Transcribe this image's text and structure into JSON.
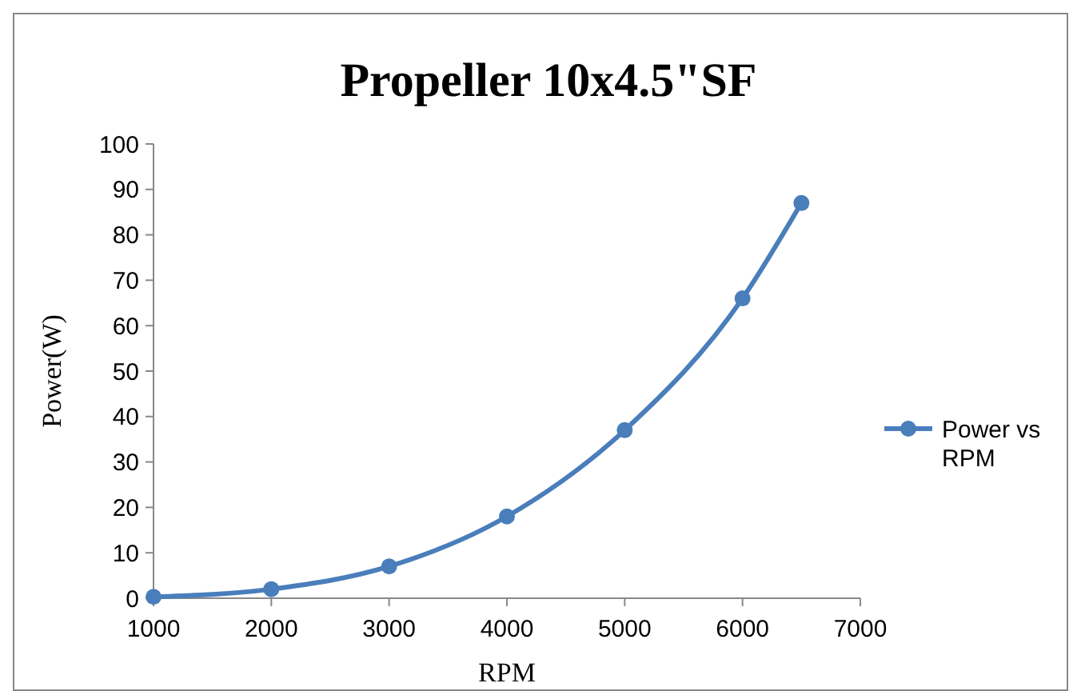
{
  "chart_data": {
    "type": "line",
    "title": "Propeller 10x4.5\"SF",
    "xlabel": "RPM",
    "ylabel": "Power(W)",
    "x": [
      1000,
      2000,
      3000,
      4000,
      5000,
      6000,
      6500
    ],
    "series": [
      {
        "name": "Power vs RPM",
        "color": "#4a7ebb",
        "values": [
          0.3,
          2,
          7,
          18,
          37,
          66,
          87
        ]
      }
    ],
    "xlim": [
      1000,
      7000
    ],
    "xticks": [
      1000,
      2000,
      3000,
      4000,
      5000,
      6000,
      7000
    ],
    "ylim": [
      0,
      100
    ],
    "yticks": [
      0,
      10,
      20,
      30,
      40,
      50,
      60,
      70,
      80,
      90,
      100
    ],
    "grid": false,
    "legend": "right",
    "marker": "circle",
    "line_style": "solid"
  }
}
